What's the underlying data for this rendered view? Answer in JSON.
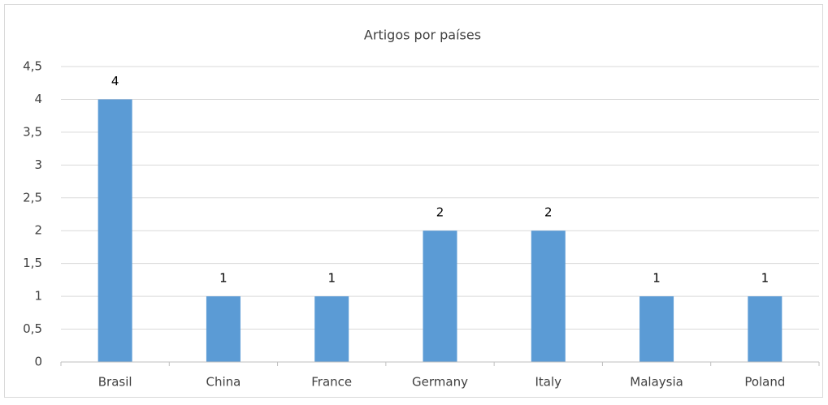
{
  "chart_data": {
    "type": "bar",
    "title": "Artigos por países",
    "categories": [
      "Brasil",
      "China",
      "France",
      "Germany",
      "Italy",
      "Malaysia",
      "Poland"
    ],
    "values": [
      4,
      1,
      1,
      2,
      2,
      1,
      1
    ],
    "color": "#5b9bd5",
    "ylim": [
      0,
      4.5
    ],
    "yticks": [
      0,
      {
        "value": 0.5,
        "label": "0,5"
      },
      1,
      {
        "value": 1.5,
        "label": "1,5"
      },
      2,
      {
        "value": 2.5,
        "label": "2,5"
      },
      3,
      {
        "value": 3.5,
        "label": "3,5"
      },
      4,
      {
        "value": 4.5,
        "label": "4,5"
      }
    ],
    "grid": true,
    "data_labels": true
  }
}
